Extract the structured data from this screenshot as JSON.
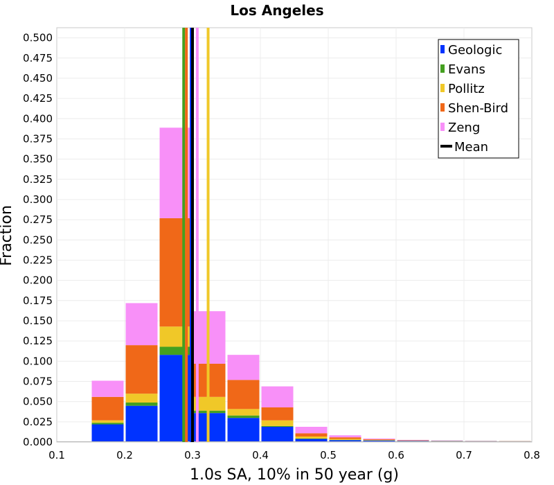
{
  "chart_data": {
    "type": "bar",
    "subtype": "stacked-histogram",
    "title": "Los Angeles",
    "xlabel": "1.0s SA, 10% in 50 year (g)",
    "ylabel": "Fraction",
    "xlim": [
      0.1,
      0.8
    ],
    "ylim": [
      0.0,
      0.5125
    ],
    "xticks": [
      "0.1",
      "0.2",
      "0.3",
      "0.4",
      "0.5",
      "0.6",
      "0.7",
      "0.8"
    ],
    "yticks": [
      "0.000",
      "0.025",
      "0.050",
      "0.075",
      "0.100",
      "0.125",
      "0.150",
      "0.175",
      "0.200",
      "0.225",
      "0.250",
      "0.275",
      "0.300",
      "0.325",
      "0.350",
      "0.375",
      "0.400",
      "0.425",
      "0.450",
      "0.475",
      "0.500"
    ],
    "grid": true,
    "legend_position": "top-right",
    "bins": [
      [
        0.15,
        0.2
      ],
      [
        0.2,
        0.25
      ],
      [
        0.25,
        0.3
      ],
      [
        0.3,
        0.35
      ],
      [
        0.35,
        0.4
      ],
      [
        0.4,
        0.45
      ],
      [
        0.45,
        0.5
      ],
      [
        0.5,
        0.55
      ],
      [
        0.55,
        0.6
      ],
      [
        0.6,
        0.65
      ],
      [
        0.65,
        0.7
      ],
      [
        0.7,
        0.75
      ],
      [
        0.75,
        0.8
      ]
    ],
    "series": [
      {
        "name": "Geologic",
        "color": "#0033ff",
        "values": [
          0.021,
          0.044,
          0.107,
          0.035,
          0.029,
          0.018,
          0.003,
          0.0015,
          0.001,
          0.0005,
          0.0003,
          0.0002,
          0.0001
        ]
      },
      {
        "name": "Evans",
        "color": "#44a020",
        "values": [
          0.002,
          0.004,
          0.01,
          0.003,
          0.003,
          0.001,
          0.0005,
          0.0003,
          0.0002,
          0.0001,
          0.0001,
          0.0001,
          0.0001
        ]
      },
      {
        "name": "Pollitz",
        "color": "#f0c828",
        "values": [
          0.003,
          0.011,
          0.025,
          0.017,
          0.008,
          0.007,
          0.0025,
          0.0012,
          0.0005,
          0.0003,
          0.0002,
          0.0001,
          0.0001
        ]
      },
      {
        "name": "Shen-Bird",
        "color": "#f06818",
        "values": [
          0.029,
          0.06,
          0.134,
          0.041,
          0.036,
          0.016,
          0.004,
          0.002,
          0.0008,
          0.0004,
          0.0002,
          0.0001,
          0.0001
        ]
      },
      {
        "name": "Zeng",
        "color": "#f890f8",
        "values": [
          0.02,
          0.052,
          0.112,
          0.065,
          0.031,
          0.026,
          0.008,
          0.0025,
          0.001,
          0.0005,
          0.0003,
          0.0002,
          0.0001
        ]
      }
    ],
    "mean_lines": [
      {
        "name": "Evans",
        "color": "#44a020",
        "x": 0.287
      },
      {
        "name": "Shen-Bird",
        "color": "#f06818",
        "x": 0.291
      },
      {
        "name": "Geologic",
        "color": "#0033ff",
        "x": 0.298
      },
      {
        "name": "Mean",
        "color": "#000000",
        "x": 0.3
      },
      {
        "name": "Zeng",
        "color": "#f890f8",
        "x": 0.307
      },
      {
        "name": "Pollitz",
        "color": "#f0c828",
        "x": 0.323
      }
    ],
    "legend": [
      {
        "label": "Geologic",
        "color": "#0033ff",
        "marker": "square"
      },
      {
        "label": "Evans",
        "color": "#44a020",
        "marker": "square"
      },
      {
        "label": "Pollitz",
        "color": "#f0c828",
        "marker": "square"
      },
      {
        "label": "Shen-Bird",
        "color": "#f06818",
        "marker": "square"
      },
      {
        "label": "Zeng",
        "color": "#f890f8",
        "marker": "square"
      },
      {
        "label": "Mean",
        "color": "#000000",
        "marker": "line"
      }
    ]
  }
}
